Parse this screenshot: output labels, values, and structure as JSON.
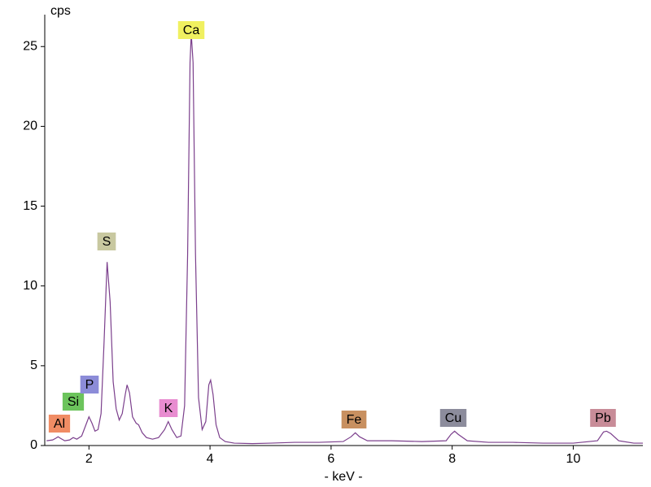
{
  "chart_data": {
    "type": "line",
    "y_label": "cps",
    "x_label": "- keV -",
    "color": "#7b3f8c",
    "xlim": [
      1.27,
      11.15
    ],
    "ylim": [
      0,
      27
    ],
    "xticks": [
      2,
      4,
      6,
      8,
      10
    ],
    "yticks": [
      0,
      5,
      10,
      15,
      20,
      25
    ],
    "x": [
      1.3,
      1.4,
      1.45,
      1.49,
      1.53,
      1.6,
      1.68,
      1.74,
      1.8,
      1.88,
      1.95,
      2.0,
      2.05,
      2.1,
      2.15,
      2.2,
      2.25,
      2.3,
      2.35,
      2.4,
      2.45,
      2.5,
      2.55,
      2.6,
      2.63,
      2.67,
      2.72,
      2.78,
      2.82,
      2.88,
      2.95,
      3.05,
      3.15,
      3.25,
      3.31,
      3.37,
      3.45,
      3.52,
      3.58,
      3.63,
      3.67,
      3.69,
      3.72,
      3.76,
      3.81,
      3.87,
      3.93,
      3.98,
      4.01,
      4.05,
      4.1,
      4.16,
      4.25,
      4.4,
      4.7,
      5.0,
      5.4,
      5.8,
      6.2,
      6.33,
      6.4,
      6.47,
      6.6,
      7.0,
      7.5,
      7.9,
      7.98,
      8.04,
      8.1,
      8.25,
      8.6,
      9.0,
      9.5,
      10.0,
      10.4,
      10.5,
      10.55,
      10.62,
      10.75,
      11.0,
      11.15
    ],
    "values": [
      0.3,
      0.35,
      0.45,
      0.55,
      0.45,
      0.3,
      0.35,
      0.5,
      0.4,
      0.6,
      1.3,
      1.8,
      1.4,
      0.9,
      1.0,
      2.0,
      6.5,
      11.5,
      9.0,
      4.0,
      2.3,
      1.6,
      2.0,
      3.2,
      3.8,
      3.3,
      1.8,
      1.4,
      1.3,
      0.8,
      0.5,
      0.4,
      0.5,
      1.0,
      1.5,
      1.0,
      0.5,
      0.6,
      2.5,
      12.0,
      24.0,
      25.8,
      24.0,
      12.0,
      3.0,
      1.0,
      1.5,
      3.8,
      4.1,
      3.2,
      1.3,
      0.5,
      0.25,
      0.15,
      0.12,
      0.15,
      0.2,
      0.2,
      0.25,
      0.55,
      0.8,
      0.55,
      0.3,
      0.3,
      0.25,
      0.3,
      0.7,
      0.9,
      0.7,
      0.3,
      0.2,
      0.2,
      0.15,
      0.15,
      0.3,
      0.85,
      0.9,
      0.75,
      0.3,
      0.15,
      0.15
    ],
    "annotations": [
      {
        "text": "Al",
        "color": "#f08c64"
      },
      {
        "text": "Si",
        "color": "#6cc45c"
      },
      {
        "text": "P",
        "color": "#8c8cd8"
      },
      {
        "text": "S",
        "color": "#c8c8a0"
      },
      {
        "text": "K",
        "color": "#e88cd0"
      },
      {
        "text": "Ca",
        "color": "#f0f060"
      },
      {
        "text": "Fe",
        "color": "#c89060"
      },
      {
        "text": "Cu",
        "color": "#8c8c9c"
      },
      {
        "text": "Pb",
        "color": "#c88c98"
      }
    ]
  }
}
